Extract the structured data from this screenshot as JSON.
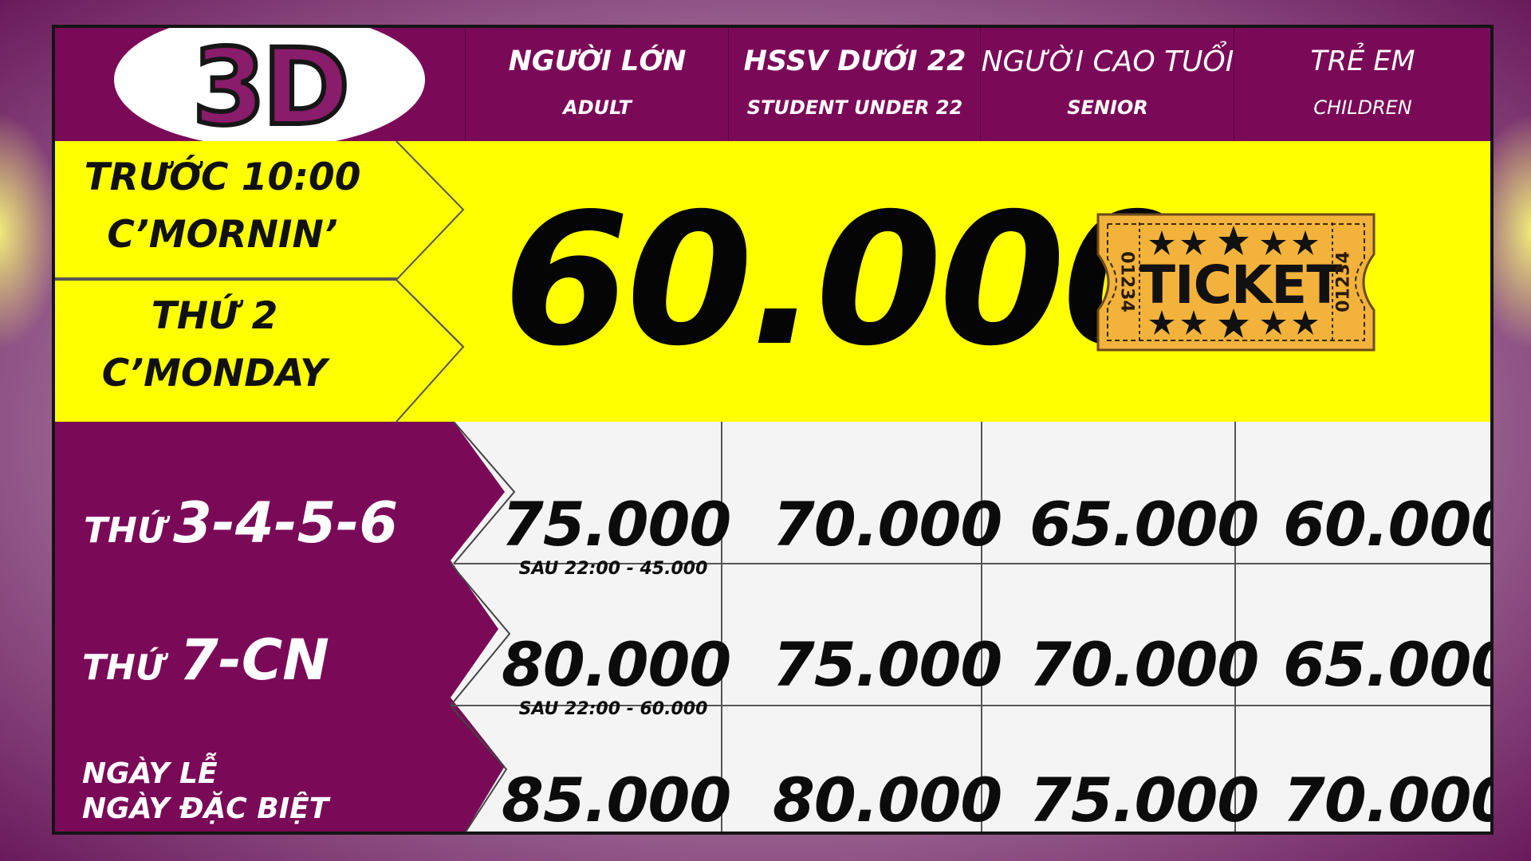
{
  "logo": {
    "text": "3D"
  },
  "columns": [
    {
      "vn": "NGƯỜI LỚN",
      "en": "ADULT"
    },
    {
      "vn": "HSSV DƯỚI 22",
      "en": "STUDENT UNDER 22"
    },
    {
      "vn": "NGƯỜI CAO TUỔI",
      "en": "SENIOR"
    },
    {
      "vn": "TRẺ EM",
      "en": "CHILDREN"
    }
  ],
  "promo": {
    "morning": {
      "line1": "TRƯỚC 10:00",
      "line2": "C’MORNIN’"
    },
    "monday": {
      "line1": "THỨ 2",
      "line2": "C’MONDAY"
    },
    "price": "60.000",
    "ticket": {
      "label": "TICKET",
      "serial": "01234"
    }
  },
  "rows": [
    {
      "label_prefix": "THỨ",
      "label_main": "3-4-5-6",
      "prices": [
        "75.000",
        "70.000",
        "65.000",
        "60.000"
      ],
      "note": "SAU 22:00 - 45.000"
    },
    {
      "label_prefix": "THỨ",
      "label_main": "7-CN",
      "prices": [
        "80.000",
        "75.000",
        "70.000",
        "65.000"
      ],
      "note": "SAU 22:00 - 60.000"
    },
    {
      "label_line1": "NGÀY LỄ",
      "label_line2": "NGÀY ĐẶC BIỆT",
      "prices": [
        "85.000",
        "80.000",
        "75.000",
        "70.000"
      ]
    }
  ],
  "colors": {
    "purple": "#7a0a58",
    "yellow": "#ffff00",
    "ticket": "#f2b23c",
    "white": "#ffffff"
  }
}
